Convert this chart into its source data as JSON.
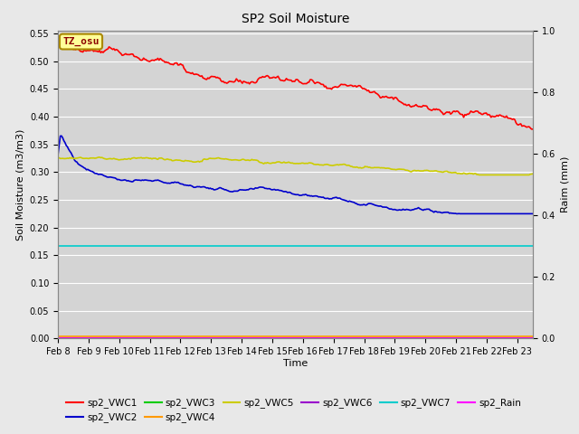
{
  "title": "SP2 Soil Moisture",
  "xlabel": "Time",
  "ylabel_left": "Soil Moisture (m3/m3)",
  "ylabel_right": "Raim (mm)",
  "ylim_left": [
    0.0,
    0.5556
  ],
  "ylim_right": [
    0.0,
    1.0
  ],
  "bg_color": "#e8e8e8",
  "plot_bg_color": "#d4d4d4",
  "xtick_labels": [
    "Feb 8",
    "Feb 9",
    "Feb 10",
    "Feb 11",
    "Feb 12",
    "Feb 13",
    "Feb 14",
    "Feb 15",
    "Feb 16",
    "Feb 17",
    "Feb 18",
    "Feb 19",
    "Feb 20",
    "Feb 21",
    "Feb 22",
    "Feb 23"
  ],
  "yticks_left": [
    0.0,
    0.05,
    0.1,
    0.15,
    0.2,
    0.25,
    0.3,
    0.35,
    0.4,
    0.45,
    0.5,
    0.55
  ],
  "yticks_right": [
    0.0,
    0.2,
    0.4,
    0.6,
    0.8,
    1.0
  ],
  "annotation_text": "TZ_osu",
  "annotation_bg": "#ffff99",
  "annotation_border": "#aa8800",
  "series": {
    "sp2_VWC1": {
      "color": "#ff0000",
      "lw": 1.2
    },
    "sp2_VWC2": {
      "color": "#0000cc",
      "lw": 1.2
    },
    "sp2_VWC3": {
      "color": "#00cc00",
      "lw": 1.2
    },
    "sp2_VWC4": {
      "color": "#ff9900",
      "lw": 1.2
    },
    "sp2_VWC5": {
      "color": "#cccc00",
      "lw": 1.2
    },
    "sp2_VWC6": {
      "color": "#9900cc",
      "lw": 1.2
    },
    "sp2_VWC7": {
      "color": "#00cccc",
      "lw": 1.2
    },
    "sp2_Rain": {
      "color": "#ff00ff",
      "lw": 1.2
    }
  },
  "legend_order": [
    "sp2_VWC1",
    "sp2_VWC2",
    "sp2_VWC3",
    "sp2_VWC4",
    "sp2_VWC5",
    "sp2_VWC6",
    "sp2_VWC7",
    "sp2_Rain"
  ],
  "n_days": 15.5,
  "n_points": 400
}
